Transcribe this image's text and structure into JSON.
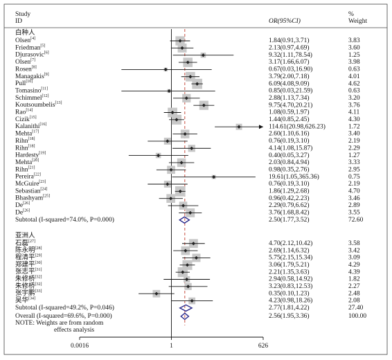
{
  "chart_data": {
    "type": "forest",
    "header": {
      "study": "Study",
      "id": "ID",
      "effect": "OR(95%CI)",
      "pct": "%",
      "weight": "Weight"
    },
    "groups": [
      {
        "name": "白种人",
        "studies": [
          {
            "study": "Olsen",
            "ref": "[4]",
            "or": 1.84,
            "lo": 0.91,
            "hi": 3.71,
            "weight": 3.83,
            "label": "1.84(0.91,3.71)",
            "weight_label": "3.83"
          },
          {
            "study": "Friedman",
            "ref": "[5]",
            "or": 2.13,
            "lo": 0.97,
            "hi": 4.69,
            "weight": 3.6,
            "label": "2.13(0.97,4.69)",
            "weight_label": "3.60"
          },
          {
            "study": "Djurasovic",
            "ref": "[6]",
            "or": 9.32,
            "lo": 1.11,
            "hi": 78.54,
            "weight": 1.25,
            "label": "9.32(1.11,78.54)",
            "weight_label": "1.25"
          },
          {
            "study": "Olsen",
            "ref": "[7]",
            "or": 3.17,
            "lo": 1.66,
            "hi": 6.07,
            "weight": 3.98,
            "label": "3.17(1.66,6.07)",
            "weight_label": "3.98"
          },
          {
            "study": "Rosen",
            "ref": "[8]",
            "or": 0.67,
            "lo": 0.03,
            "hi": 16.9,
            "weight": 0.63,
            "label": "0.67(0.03,16.90)",
            "weight_label": "0.63"
          },
          {
            "study": "Managakis",
            "ref": "[9]",
            "or": 3.79,
            "lo": 2.0,
            "hi": 7.18,
            "weight": 4.01,
            "label": "3.79(2.00,7.18)",
            "weight_label": "4.01"
          },
          {
            "study": "Pull",
            "ref": "[10]",
            "or": 6.09,
            "lo": 4.08,
            "hi": 9.09,
            "weight": 4.62,
            "label": "6.09(4.08,9.09)",
            "weight_label": "4.62"
          },
          {
            "study": "Tomasino",
            "ref": "[11]",
            "or": 0.85,
            "lo": 0.03,
            "hi": 21.59,
            "weight": 0.63,
            "label": "0.85(0.03,21.59)",
            "weight_label": "0.63"
          },
          {
            "study": "Schimmel",
            "ref": "[12]",
            "or": 2.88,
            "lo": 1.13,
            "hi": 7.34,
            "weight": 3.2,
            "label": "2.88(1.13,7.34)",
            "weight_label": "3.20"
          },
          {
            "study": "Koutsoumbelis",
            "ref": "[13]",
            "or": 9.75,
            "lo": 4.7,
            "hi": 20.21,
            "weight": 3.76,
            "label": "9.75(4.70,20.21)",
            "weight_label": "3.76"
          },
          {
            "study": "Rao",
            "ref": "[14]",
            "or": 1.08,
            "lo": 0.59,
            "hi": 1.97,
            "weight": 4.11,
            "label": "1.08(0.59,1.97)",
            "weight_label": "4.11"
          },
          {
            "study": "Cizik",
            "ref": "[15]",
            "or": 1.44,
            "lo": 0.85,
            "hi": 2.45,
            "weight": 4.3,
            "label": "1.44(0.85,2.45)",
            "weight_label": "4.30"
          },
          {
            "study": "Kalanithi",
            "ref": "[16]",
            "or": 114.61,
            "lo": 20.98,
            "hi": 626.23,
            "weight": 1.72,
            "label": "114.61(20.98,626.23)",
            "weight_label": "1.72"
          },
          {
            "study": "Mehta",
            "ref": "[17]",
            "or": 2.6,
            "lo": 1.1,
            "hi": 6.16,
            "weight": 3.4,
            "label": "2.60(1.10,6.16)",
            "weight_label": "3.40"
          },
          {
            "study": "Rihn",
            "ref": "[18]",
            "or": 0.76,
            "lo": 0.19,
            "hi": 3.1,
            "weight": 2.19,
            "label": "0.76(0.19,3.10)",
            "weight_label": "2.19"
          },
          {
            "study": "Rihn",
            "ref": "[18]",
            "or": 4.14,
            "lo": 1.08,
            "hi": 15.87,
            "weight": 2.29,
            "label": "4.14(1.08,15.87)",
            "weight_label": "2.29"
          },
          {
            "study": "Hardesty",
            "ref": "[19]",
            "or": 0.4,
            "lo": 0.05,
            "hi": 3.27,
            "weight": 1.27,
            "label": "0.40(0.05,3.27)",
            "weight_label": "1.27"
          },
          {
            "study": "Mehta",
            "ref": "[20]",
            "or": 2.03,
            "lo": 0.84,
            "hi": 4.94,
            "weight": 3.33,
            "label": "2.03(0.84,4.94)",
            "weight_label": "3.33"
          },
          {
            "study": "Rihn",
            "ref": "[21]",
            "or": 0.98,
            "lo": 0.35,
            "hi": 2.76,
            "weight": 2.95,
            "label": "0.98(0.35,2.76)",
            "weight_label": "2.95"
          },
          {
            "study": "Pereira",
            "ref": "[22]",
            "or": 19.61,
            "lo": 1.05,
            "hi": 365.36,
            "weight": 0.75,
            "label": "19.61(1.05,365.36)",
            "weight_label": "0.75"
          },
          {
            "study": "McGuire",
            "ref": "[23]",
            "or": 0.76,
            "lo": 0.19,
            "hi": 3.1,
            "weight": 2.19,
            "label": "0.76(0.19,3.10)",
            "weight_label": "2.19"
          },
          {
            "study": "Sebastian",
            "ref": "[24]",
            "or": 1.86,
            "lo": 1.29,
            "hi": 2.68,
            "weight": 4.7,
            "label": "1.86(1.29,2.68)",
            "weight_label": "4.70"
          },
          {
            "study": "Bhashyam",
            "ref": "[25]",
            "or": 0.96,
            "lo": 0.42,
            "hi": 2.23,
            "weight": 3.46,
            "label": "0.96(0.42,2.23)",
            "weight_label": "3.46"
          },
          {
            "study": "De",
            "ref": "[26]",
            "or": 2.29,
            "lo": 0.79,
            "hi": 6.62,
            "weight": 2.89,
            "label": "2.29(0.79,6.62)",
            "weight_label": "2.89"
          },
          {
            "study": "De",
            "ref": "[26]",
            "or": 3.76,
            "lo": 1.68,
            "hi": 8.42,
            "weight": 3.55,
            "label": "3.76(1.68,8.42)",
            "weight_label": "3.55"
          }
        ],
        "subtotal": {
          "text": "Subtotal (I-squared=74.0%, P=0.000)",
          "or": 2.5,
          "lo": 1.77,
          "hi": 3.52,
          "weight": 72.6,
          "label": "2.50(1.77,3.52)",
          "weight_label": "72.60"
        }
      },
      {
        "name": "亚洲人",
        "studies": [
          {
            "study": "石磊",
            "ref": "[27]",
            "or": 4.7,
            "lo": 2.12,
            "hi": 10.42,
            "weight": 3.58,
            "label": "4.70(2.12,10.42)",
            "weight_label": "3.58"
          },
          {
            "study": "陈永明",
            "ref": "[28]",
            "or": 2.69,
            "lo": 1.14,
            "hi": 6.32,
            "weight": 3.42,
            "label": "2.69(1.14,6.32)",
            "weight_label": "3.42"
          },
          {
            "study": "程清平",
            "ref": "[29]",
            "or": 5.75,
            "lo": 2.15,
            "hi": 15.34,
            "weight": 3.09,
            "label": "5.75(2.15,15.34)",
            "weight_label": "3.09"
          },
          {
            "study": "郑建平",
            "ref": "[30]",
            "or": 3.06,
            "lo": 1.79,
            "hi": 5.21,
            "weight": 4.29,
            "label": "3.06(1.79,5.21)",
            "weight_label": "4.29"
          },
          {
            "study": "张志平",
            "ref": "[31]",
            "or": 2.21,
            "lo": 1.35,
            "hi": 3.63,
            "weight": 4.39,
            "label": "2.21(1.35,3.63)",
            "weight_label": "4.39"
          },
          {
            "study": "朱修桥",
            "ref": "[32]",
            "or": 2.94,
            "lo": 0.58,
            "hi": 14.92,
            "weight": 1.82,
            "label": "2.94(0.58,14.92)",
            "weight_label": "1.82"
          },
          {
            "study": "朱修桥",
            "ref": "[32]",
            "or": 3.23,
            "lo": 0.83,
            "hi": 12.53,
            "weight": 2.27,
            "label": "3.23(0.83,12.53)",
            "weight_label": "2.27"
          },
          {
            "study": "张宇鹏",
            "ref": "[33]",
            "or": 0.35,
            "lo": 0.1,
            "hi": 1.23,
            "weight": 2.48,
            "label": "0.35(0.10,1.23)",
            "weight_label": "2.48"
          },
          {
            "study": "吴华",
            "ref": "[34]",
            "or": 4.23,
            "lo": 0.98,
            "hi": 18.26,
            "weight": 2.08,
            "label": "4.23(0.98,18.26)",
            "weight_label": "2.08"
          }
        ],
        "subtotal": {
          "text": "Subtotal (I-squared=49.2%, P=0.046)",
          "or": 2.77,
          "lo": 1.81,
          "hi": 4.22,
          "weight": 27.4,
          "label": "2.77(1.81,4.22)",
          "weight_label": "27.40"
        }
      }
    ],
    "overall": {
      "text": "Overall (I-squared=69.6%, P=0.000)",
      "or": 2.56,
      "lo": 1.95,
      "hi": 3.36,
      "weight": 100.0,
      "label": "2.56(1.95,3.36)",
      "weight_label": "100.00"
    },
    "note": [
      "NOTE: Weights are from random",
      "effects analysis"
    ],
    "xlim": [
      0.0016,
      626
    ],
    "xticks": [
      0.0016,
      1,
      626
    ],
    "log_scale": true,
    "box_color": "#c8c8c8",
    "point_color": "#222222",
    "diamond_color": "#2c2c8c",
    "overall_line_color": "#c0392b"
  }
}
